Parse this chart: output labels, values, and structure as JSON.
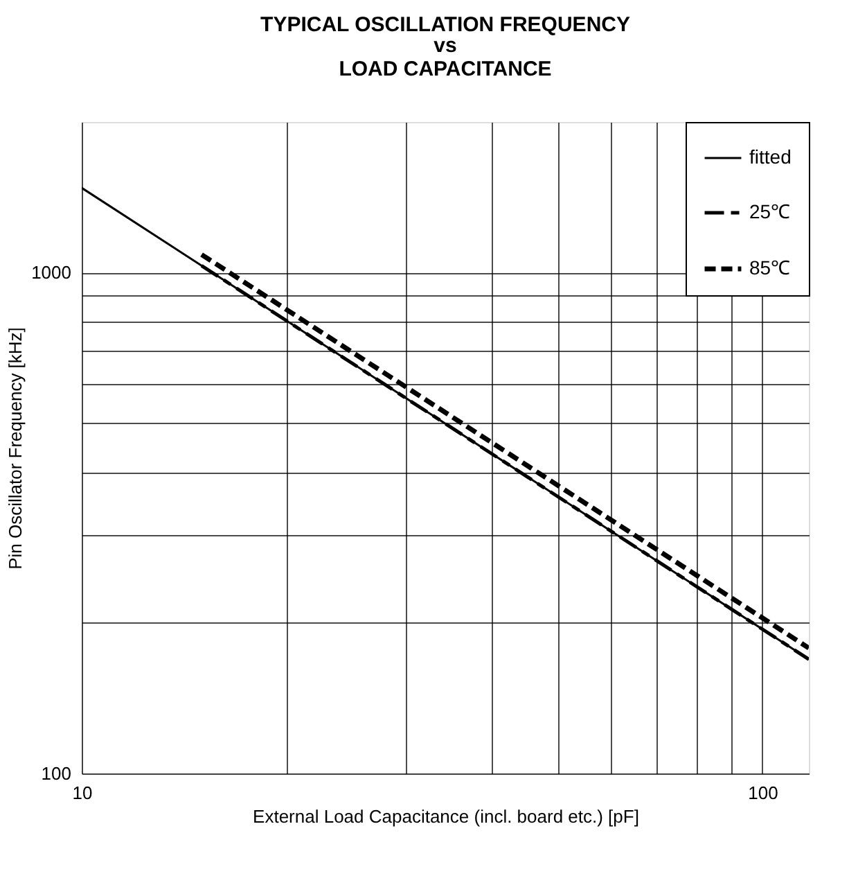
{
  "chart_data": {
    "type": "line",
    "title": "TYPICAL OSCILLATION FREQUENCY",
    "subtitle": [
      "vs",
      "LOAD CAPACITANCE"
    ],
    "xlabel": "External Load Capacitance (incl. board etc.) [pF]",
    "ylabel": "Pin Oscillator Frequency [kHz]",
    "log": "xy",
    "xlim": [
      10,
      117
    ],
    "ylim": [
      100,
      2000
    ],
    "xticks": [
      10,
      {
        "value": 20,
        "label": null
      },
      {
        "value": 30,
        "label": null
      },
      {
        "value": 40,
        "label": null
      },
      {
        "value": 50,
        "label": null
      },
      {
        "value": 60,
        "label": null
      },
      {
        "value": 70,
        "label": null
      },
      {
        "value": 80,
        "label": null
      },
      {
        "value": 90,
        "label": null
      },
      100
    ],
    "yticks": [
      100,
      {
        "value": 200,
        "label": null
      },
      {
        "value": 300,
        "label": null
      },
      {
        "value": 400,
        "label": null
      },
      {
        "value": 500,
        "label": null
      },
      {
        "value": 600,
        "label": null
      },
      {
        "value": 700,
        "label": null
      },
      {
        "value": 800,
        "label": null
      },
      {
        "value": 900,
        "label": null
      },
      1000
    ],
    "grid": true,
    "legend": "top right",
    "series": [
      {
        "name": "fitted",
        "color": "#000000",
        "line_style": "solid",
        "x": [
          10,
          117
        ],
        "values": [
          1477,
          169
        ]
      },
      {
        "name": "25℃",
        "color": "#000000",
        "line_style": "dashed",
        "x": [
          15,
          117
        ],
        "values": [
          1033,
          169
        ]
      },
      {
        "name": "85℃",
        "color": "#000000",
        "line_style": "dashed",
        "x": [
          15,
          117
        ],
        "values": [
          1087,
          178
        ]
      }
    ]
  }
}
